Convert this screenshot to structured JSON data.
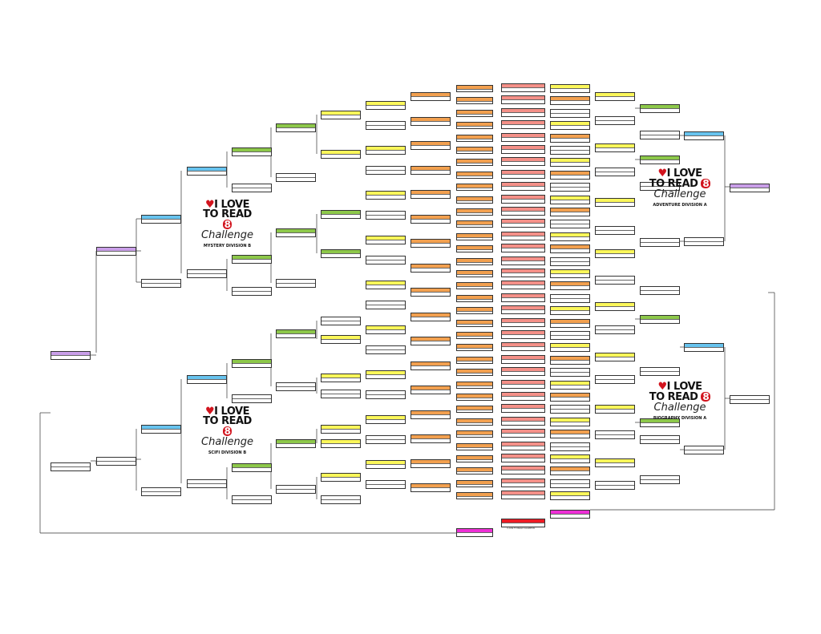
{
  "colors": {
    "purple": "#c99ee8",
    "blue": "#67c3ee",
    "green": "#8dc84a",
    "yellow": "#fbf75a",
    "orange": "#f2a04f",
    "salmon": "#f49088",
    "magenta": "#ee2fd6",
    "red": "#ee1b24",
    "white": "#ffffff"
  },
  "logos": [
    {
      "line1": "I LOVE",
      "line2a": "TO READ",
      "eight": "8",
      "line3": "Challenge",
      "division": "MYSTERY DIVISION B"
    },
    {
      "line1": "I LOVE",
      "line2a": "TO READ",
      "eight": "8",
      "line3": "Challenge",
      "division": "SCIFI DIVISION B"
    },
    {
      "line1": "I LOVE",
      "line2a": "TO READ",
      "eight": "8",
      "line3": "Challenge",
      "division": "ADVENTURE DIVISION A"
    },
    {
      "line1": "I LOVE",
      "line2a": "TO READ",
      "eight": "8",
      "line3": "Challenge",
      "division": "BIOGRAPHY DIVISION A"
    }
  ],
  "labels": {
    "champion": "I LOVE TO READ CHAMPION"
  }
}
